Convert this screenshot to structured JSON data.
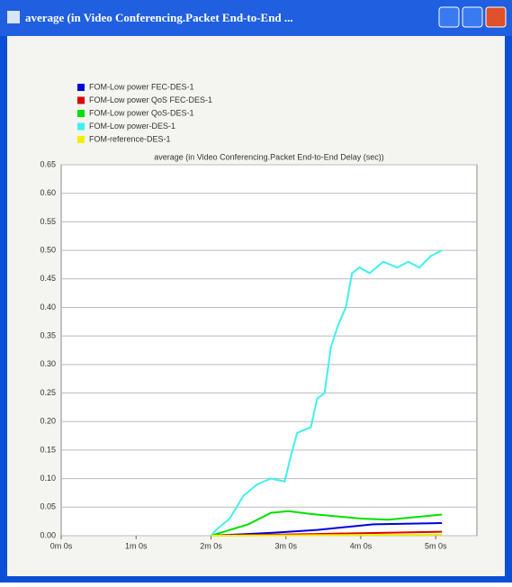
{
  "window": {
    "title": "average (in Video Conferencing.Packet End-to-End ..."
  },
  "chart_data": {
    "type": "line",
    "title": "average (in Video Conferencing.Packet End-to-End Delay (sec))",
    "xlim": [
      0,
      333
    ],
    "xticks": [
      {
        "value": 0,
        "label": "0m 0s"
      },
      {
        "value": 60,
        "label": "1m 0s"
      },
      {
        "value": 120,
        "label": "2m 0s"
      },
      {
        "value": 180,
        "label": "3m 0s"
      },
      {
        "value": 240,
        "label": "4m 0s"
      },
      {
        "value": 300,
        "label": "5m 0s"
      }
    ],
    "ylim": [
      0,
      0.65
    ],
    "yticks": [
      {
        "value": 0,
        "label": "0.00"
      },
      {
        "value": 0.05,
        "label": "0.05"
      },
      {
        "value": 0.1,
        "label": "0.10"
      },
      {
        "value": 0.15,
        "label": "0.15"
      },
      {
        "value": 0.2,
        "label": "0.20"
      },
      {
        "value": 0.25,
        "label": "0.25"
      },
      {
        "value": 0.3,
        "label": "0.30"
      },
      {
        "value": 0.35,
        "label": "0.35"
      },
      {
        "value": 0.4,
        "label": "0.40"
      },
      {
        "value": 0.45,
        "label": "0.45"
      },
      {
        "value": 0.5,
        "label": "0.50"
      },
      {
        "value": 0.55,
        "label": "0.55"
      },
      {
        "value": 0.6,
        "label": "0.60"
      },
      {
        "value": 0.65,
        "label": "0.65"
      }
    ],
    "grid": true,
    "series": [
      {
        "name": "FOM-Low power FEC-DES-1",
        "color": "#0000e0",
        "x": [
          120,
          168,
          205,
          250,
          305
        ],
        "values": [
          0,
          0.005,
          0.01,
          0.02,
          0.022
        ]
      },
      {
        "name": "FOM-Low power QoS FEC-DES-1",
        "color": "#e00000",
        "x": [
          120,
          205,
          305
        ],
        "values": [
          0,
          0.003,
          0.007
        ]
      },
      {
        "name": "FOM-Low power QoS-DES-1",
        "color": "#00e000",
        "x": [
          120,
          150,
          168,
          182,
          200,
          240,
          262,
          305
        ],
        "values": [
          0,
          0.02,
          0.04,
          0.043,
          0.038,
          0.03,
          0.028,
          0.037
        ]
      },
      {
        "name": "FOM-Low power-DES-1",
        "color": "#40f0f0",
        "x": [
          120,
          124,
          135,
          146,
          157,
          168,
          179,
          184,
          189,
          200,
          205,
          211,
          216,
          222,
          228,
          233,
          239,
          247,
          258,
          269,
          278,
          287,
          296,
          305
        ],
        "values": [
          0,
          0.01,
          0.03,
          0.07,
          0.09,
          0.1,
          0.095,
          0.14,
          0.18,
          0.19,
          0.24,
          0.25,
          0.33,
          0.37,
          0.4,
          0.46,
          0.47,
          0.46,
          0.48,
          0.47,
          0.48,
          0.47,
          0.49,
          0.5
        ]
      },
      {
        "name": "FOM-reference-DES-1",
        "color": "#f0f000",
        "x": [
          120,
          305
        ],
        "values": [
          0,
          0.002
        ]
      }
    ]
  }
}
